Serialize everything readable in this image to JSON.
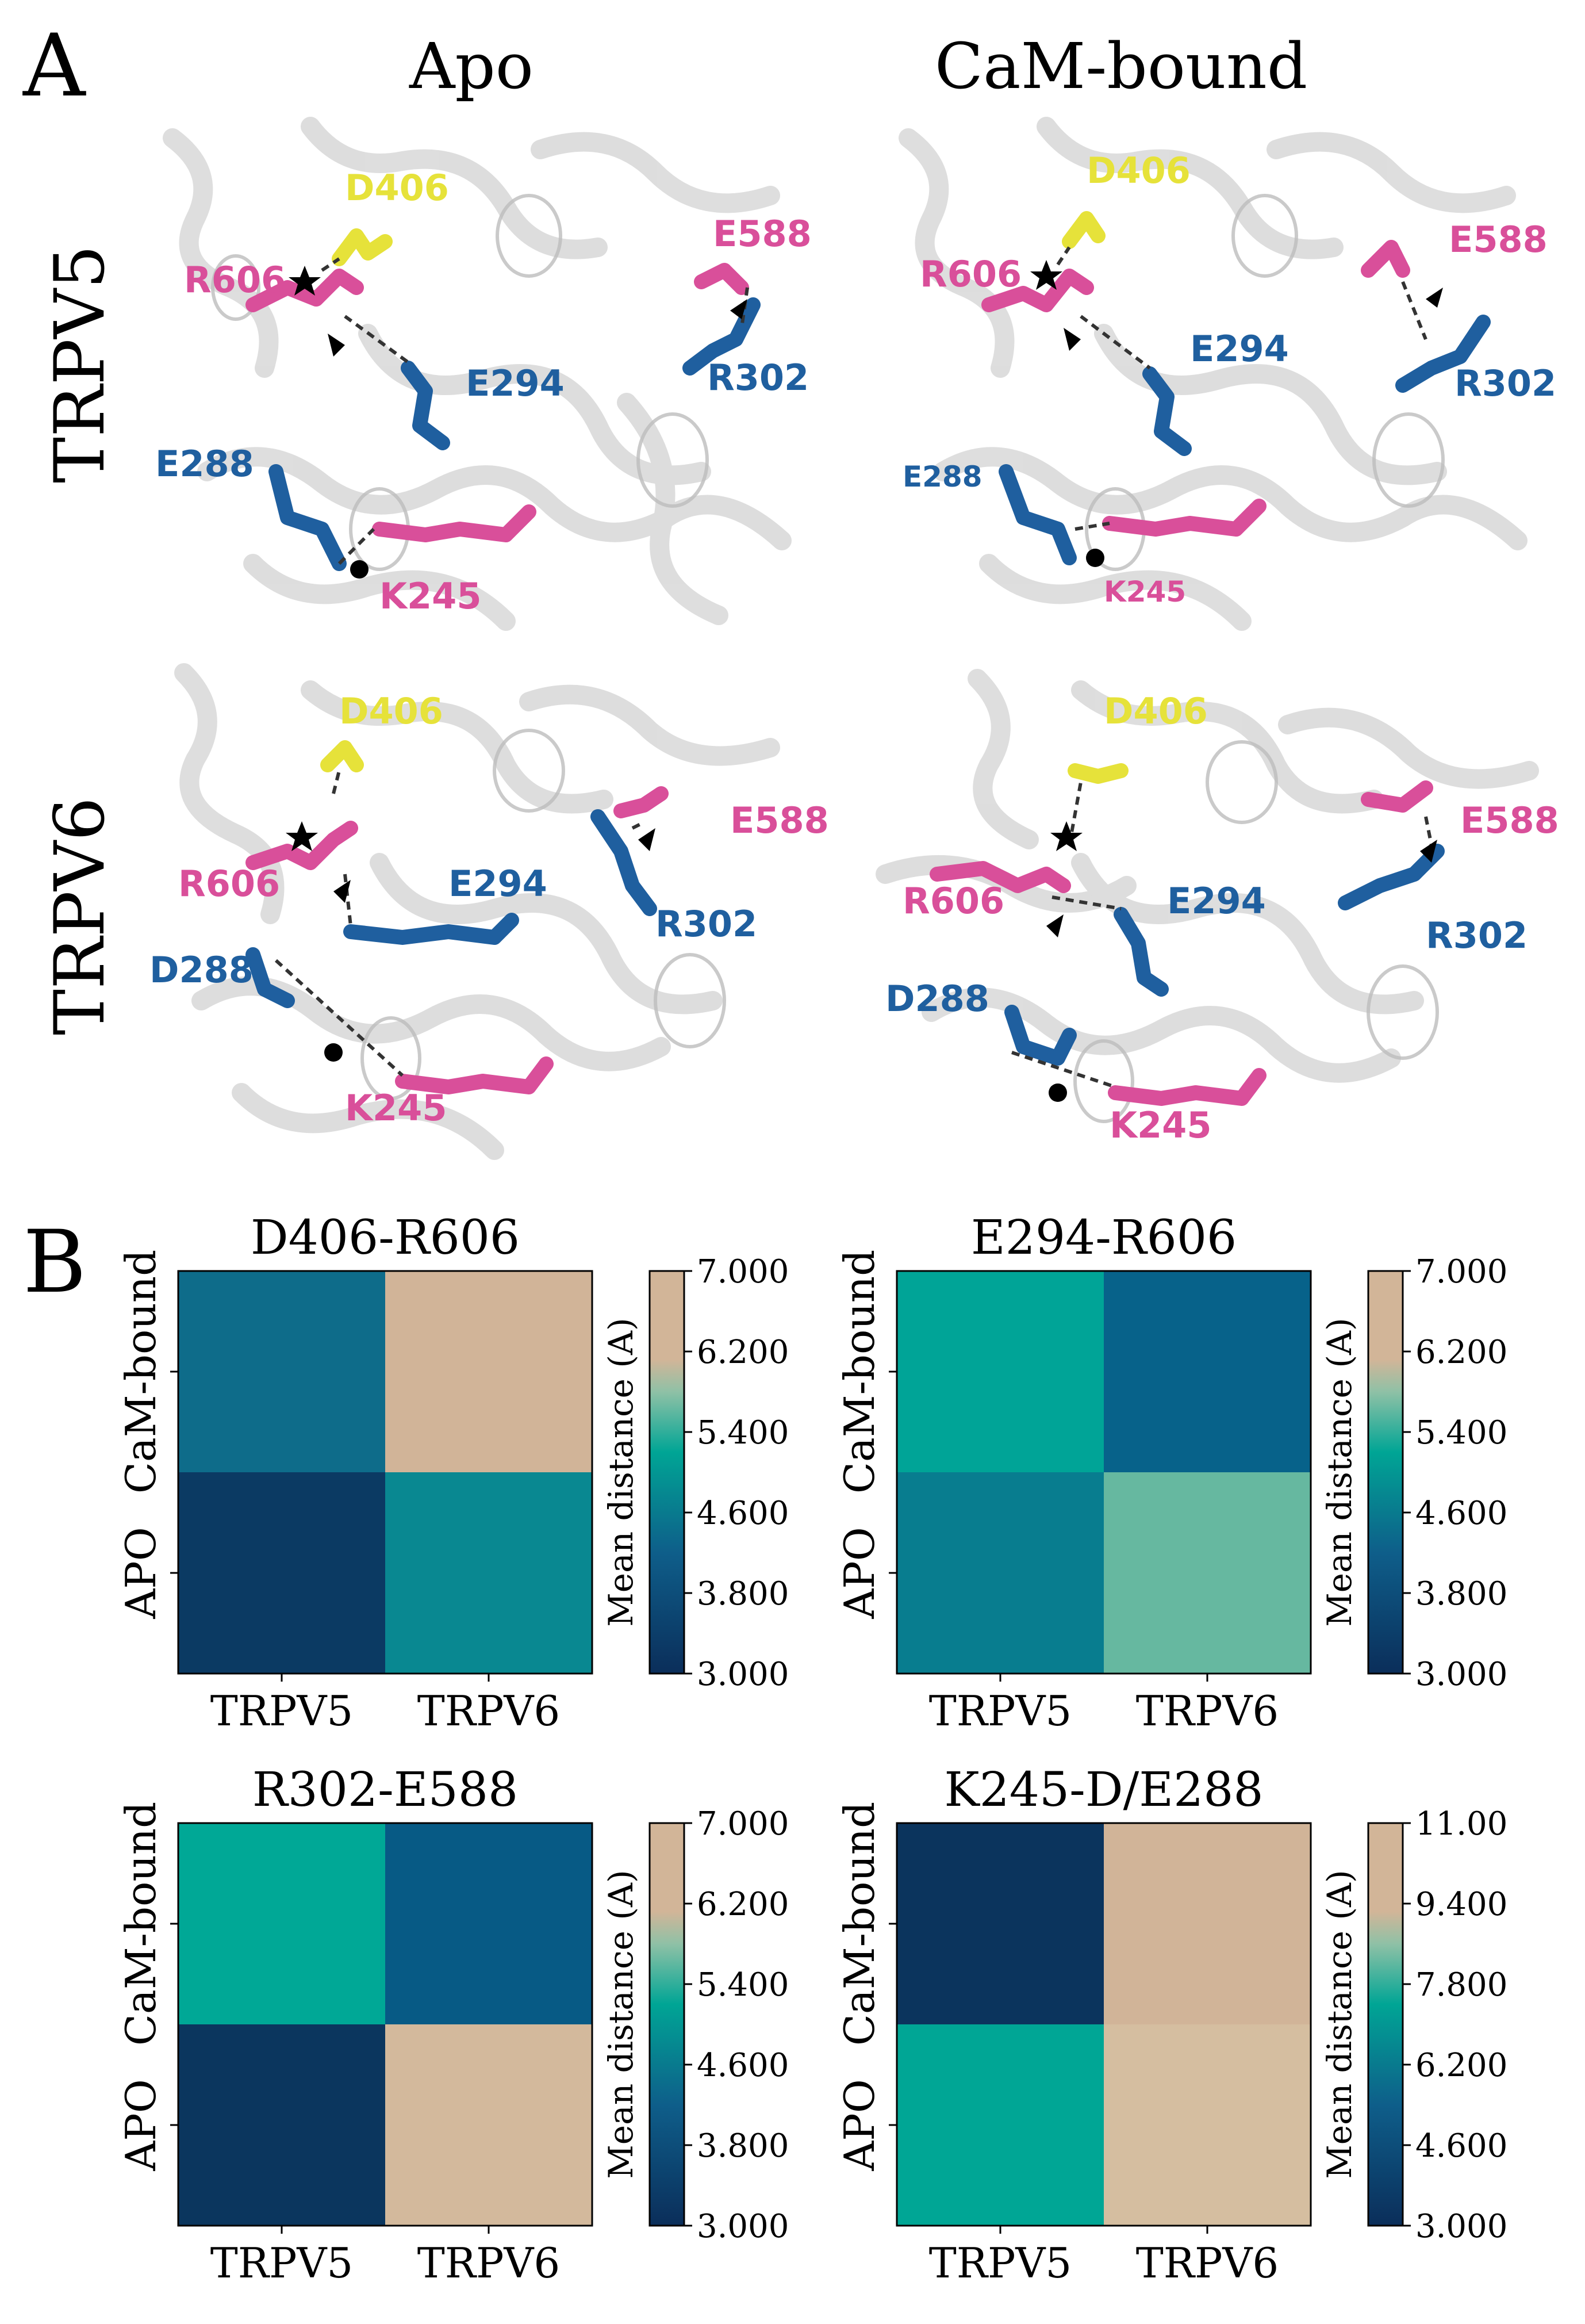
{
  "panel_a": {
    "letter": "A",
    "columns": [
      "Apo",
      "CaM-bound"
    ],
    "rows": [
      "TRPV5",
      "TRPV6"
    ],
    "colors": {
      "acidic_blue": "#1f5f9f",
      "basic_pink": "#d94f9a",
      "asp_yellow": "#e6e23a",
      "ribbon": "#cfcfcf"
    },
    "structures": [
      {
        "row": "TRPV5",
        "col": "Apo",
        "labels": [
          "D406",
          "R606",
          "E588",
          "E294",
          "R302",
          "E288",
          "K245"
        ]
      },
      {
        "row": "TRPV5",
        "col": "CaM-bound",
        "labels": [
          "D406",
          "R606",
          "E588",
          "E294",
          "R302",
          "E288",
          "K245"
        ]
      },
      {
        "row": "TRPV6",
        "col": "Apo",
        "labels": [
          "D406",
          "R606",
          "E588",
          "E294",
          "R302",
          "D288",
          "K245"
        ]
      },
      {
        "row": "TRPV6",
        "col": "CaM-bound",
        "labels": [
          "D406",
          "R606",
          "E588",
          "E294",
          "R302",
          "D288",
          "K245"
        ]
      }
    ]
  },
  "panel_b": {
    "letter": "B",
    "ylabel_top": "CaM-bound",
    "ylabel_bottom": "APO",
    "xlabels": [
      "TRPV5",
      "TRPV6"
    ],
    "colorbar_label": "Mean distance (A)",
    "colormap": {
      "low": "#0b2e5a",
      "mid": "#00a595",
      "high": "#d2b598"
    }
  },
  "chart_data": [
    {
      "type": "heatmap",
      "title": "D406-R606",
      "rows": [
        "CaM-bound",
        "APO"
      ],
      "columns": [
        "TRPV5",
        "TRPV6"
      ],
      "values": [
        [
          4.2,
          7.0
        ],
        [
          3.0,
          4.8
        ]
      ],
      "range": [
        3.0,
        7.0
      ],
      "colorbar_ticks": [
        "7.000",
        "6.200",
        "5.400",
        "4.600",
        "3.800",
        "3.000"
      ],
      "cell_colors": [
        [
          "#0e6c8a",
          "#d1b498"
        ],
        [
          "#0b3a63",
          "#098891"
        ]
      ]
    },
    {
      "type": "heatmap",
      "title": "E294-R606",
      "rows": [
        "CaM-bound",
        "APO"
      ],
      "columns": [
        "TRPV5",
        "TRPV6"
      ],
      "values": [
        [
          5.2,
          3.8
        ],
        [
          4.4,
          5.8
        ]
      ],
      "range": [
        3.0,
        7.0
      ],
      "colorbar_ticks": [
        "7.000",
        "6.200",
        "5.400",
        "4.600",
        "3.800",
        "3.000"
      ],
      "cell_colors": [
        [
          "#00a497",
          "#07628a"
        ],
        [
          "#087d8f",
          "#66b8a0"
        ]
      ]
    },
    {
      "type": "heatmap",
      "title": "R302-E588",
      "rows": [
        "CaM-bound",
        "APO"
      ],
      "columns": [
        "TRPV5",
        "TRPV6"
      ],
      "values": [
        [
          5.2,
          3.6
        ],
        [
          3.0,
          7.0
        ]
      ],
      "range": [
        3.0,
        7.0
      ],
      "colorbar_ticks": [
        "7.000",
        "6.200",
        "5.400",
        "4.600",
        "3.800",
        "3.000"
      ],
      "cell_colors": [
        [
          "#00a896",
          "#075a85"
        ],
        [
          "#0b365e",
          "#d3b99c"
        ]
      ]
    },
    {
      "type": "heatmap",
      "title": "K245-D/E288",
      "rows": [
        "CaM-bound",
        "APO"
      ],
      "columns": [
        "TRPV5",
        "TRPV6"
      ],
      "values": [
        [
          3.0,
          11.0
        ],
        [
          7.6,
          10.8
        ]
      ],
      "range": [
        3.0,
        11.0
      ],
      "colorbar_ticks": [
        "11.00",
        "9.400",
        "7.800",
        "6.200",
        "4.600",
        "3.000"
      ],
      "cell_colors": [
        [
          "#0b345d",
          "#d1b498"
        ],
        [
          "#00a695",
          "#d5bea0"
        ]
      ]
    }
  ]
}
